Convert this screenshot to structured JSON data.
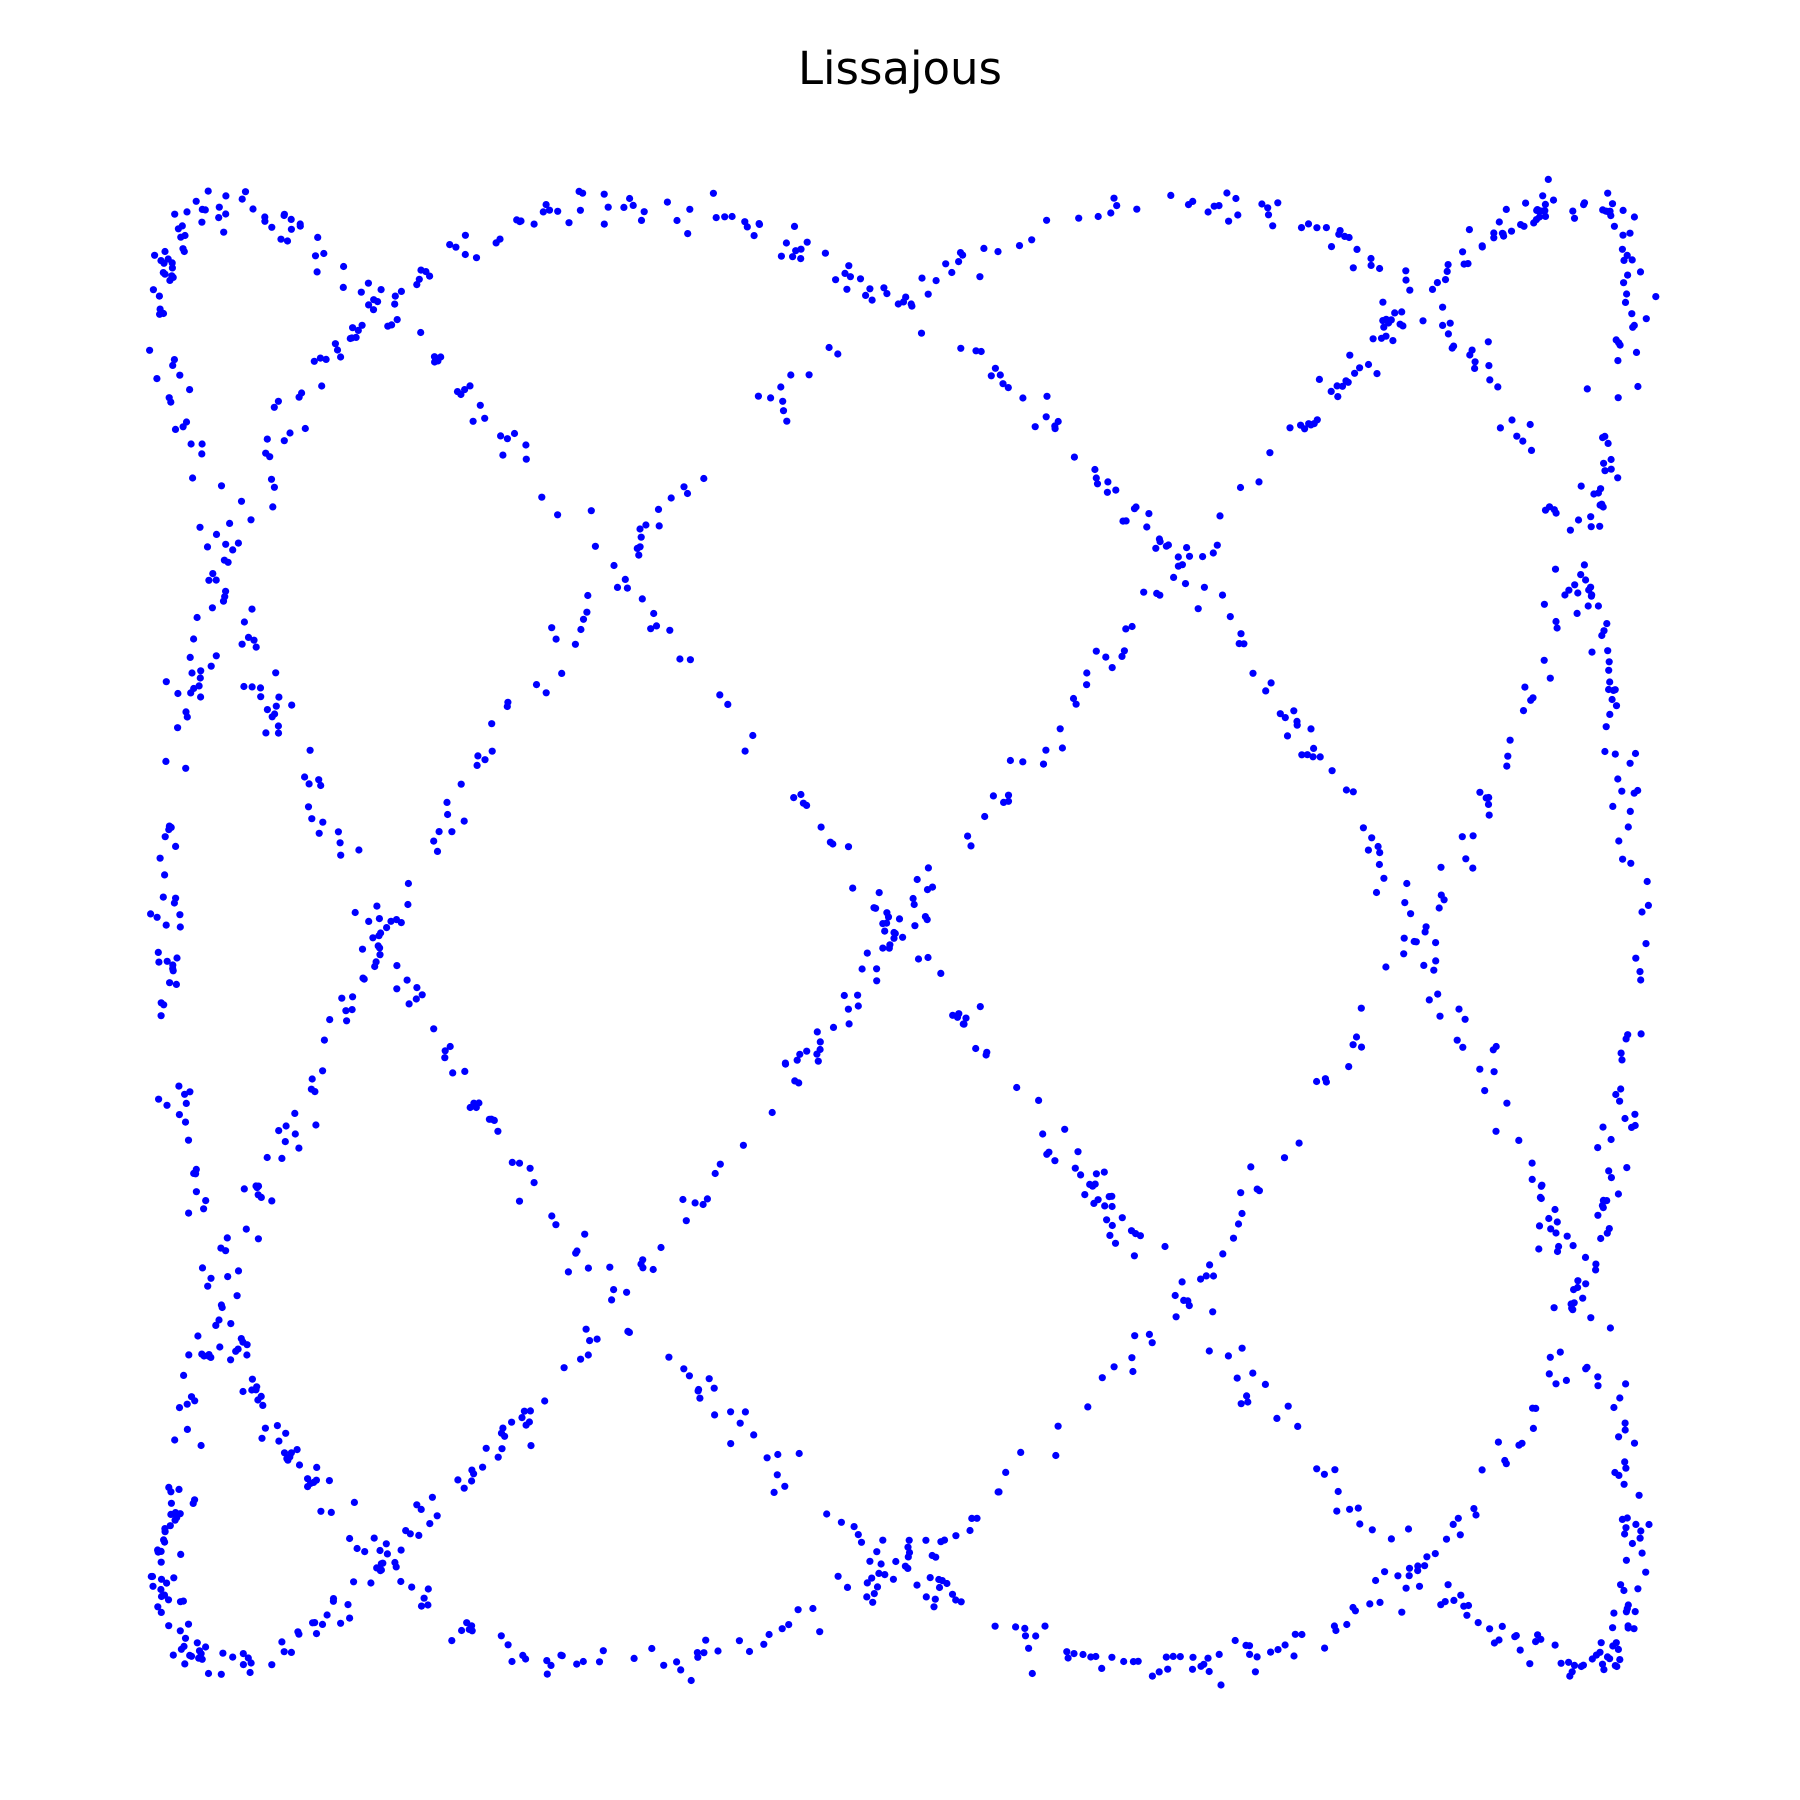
{
  "chart_data": {
    "type": "scatter",
    "title": "Lissajous",
    "curve": {
      "kind": "lissajous",
      "x_frequency": 3,
      "y_frequency": 4,
      "phase": 1.5708,
      "amplitude_x": 1.0,
      "amplitude_y": 1.0,
      "noise": 0.012,
      "point_count": 1600
    },
    "xlim": [
      -1.05,
      1.05
    ],
    "ylim": [
      -1.06,
      1.06
    ],
    "marker_color": "#0000ff",
    "axes_visible": false,
    "grid": false,
    "legend": "none"
  }
}
